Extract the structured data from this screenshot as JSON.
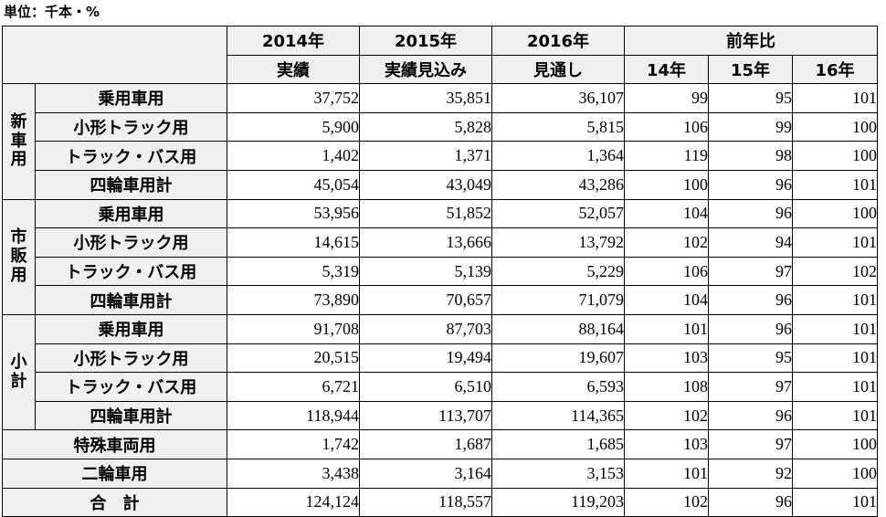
{
  "unit_label": "単位：千本・%",
  "header": {
    "y2014": "2014年",
    "y2015": "2015年",
    "y2016": "2016年",
    "yoy": "前年比",
    "sub2014": "実績",
    "sub2015": "実績見込み",
    "sub2016": "見通し",
    "yoy14": "14年",
    "yoy15": "15年",
    "yoy16": "16年"
  },
  "groups": [
    {
      "name_chars": [
        "新",
        "車",
        "用"
      ],
      "rows": [
        {
          "label": "乗用車用",
          "v2014": "37,752",
          "v2015": "35,851",
          "v2016": "36,107",
          "r14": "99",
          "r15": "95",
          "r16": "101"
        },
        {
          "label": "小形トラック用",
          "v2014": "5,900",
          "v2015": "5,828",
          "v2016": "5,815",
          "r14": "106",
          "r15": "99",
          "r16": "100"
        },
        {
          "label": "トラック・バス用",
          "v2014": "1,402",
          "v2015": "1,371",
          "v2016": "1,364",
          "r14": "119",
          "r15": "98",
          "r16": "100"
        },
        {
          "label": "四輪車用計",
          "v2014": "45,054",
          "v2015": "43,049",
          "v2016": "43,286",
          "r14": "100",
          "r15": "96",
          "r16": "101"
        }
      ]
    },
    {
      "name_chars": [
        "市",
        "販",
        "用"
      ],
      "rows": [
        {
          "label": "乗用車用",
          "v2014": "53,956",
          "v2015": "51,852",
          "v2016": "52,057",
          "r14": "104",
          "r15": "96",
          "r16": "100"
        },
        {
          "label": "小形トラック用",
          "v2014": "14,615",
          "v2015": "13,666",
          "v2016": "13,792",
          "r14": "102",
          "r15": "94",
          "r16": "101"
        },
        {
          "label": "トラック・バス用",
          "v2014": "5,319",
          "v2015": "5,139",
          "v2016": "5,229",
          "r14": "106",
          "r15": "97",
          "r16": "102"
        },
        {
          "label": "四輪車用計",
          "v2014": "73,890",
          "v2015": "70,657",
          "v2016": "71,079",
          "r14": "104",
          "r15": "96",
          "r16": "101"
        }
      ]
    },
    {
      "name_chars": [
        "小",
        "計"
      ],
      "rows": [
        {
          "label": "乗用車用",
          "v2014": "91,708",
          "v2015": "87,703",
          "v2016": "88,164",
          "r14": "101",
          "r15": "96",
          "r16": "101"
        },
        {
          "label": "小形トラック用",
          "v2014": "20,515",
          "v2015": "19,494",
          "v2016": "19,607",
          "r14": "103",
          "r15": "95",
          "r16": "101"
        },
        {
          "label": "トラック・バス用",
          "v2014": "6,721",
          "v2015": "6,510",
          "v2016": "6,593",
          "r14": "108",
          "r15": "97",
          "r16": "101"
        },
        {
          "label": "四輪車用計",
          "v2014": "118,944",
          "v2015": "113,707",
          "v2016": "114,365",
          "r14": "102",
          "r15": "96",
          "r16": "101"
        }
      ]
    }
  ],
  "totals": [
    {
      "label": "特殊車両用",
      "v2014": "1,742",
      "v2015": "1,687",
      "v2016": "1,685",
      "r14": "103",
      "r15": "97",
      "r16": "100"
    },
    {
      "label": "二輪車用",
      "v2014": "3,438",
      "v2015": "3,164",
      "v2016": "3,153",
      "r14": "101",
      "r15": "92",
      "r16": "100"
    },
    {
      "label": "合　計",
      "v2014": "124,124",
      "v2015": "118,557",
      "v2016": "119,203",
      "r14": "102",
      "r15": "96",
      "r16": "101"
    }
  ]
}
